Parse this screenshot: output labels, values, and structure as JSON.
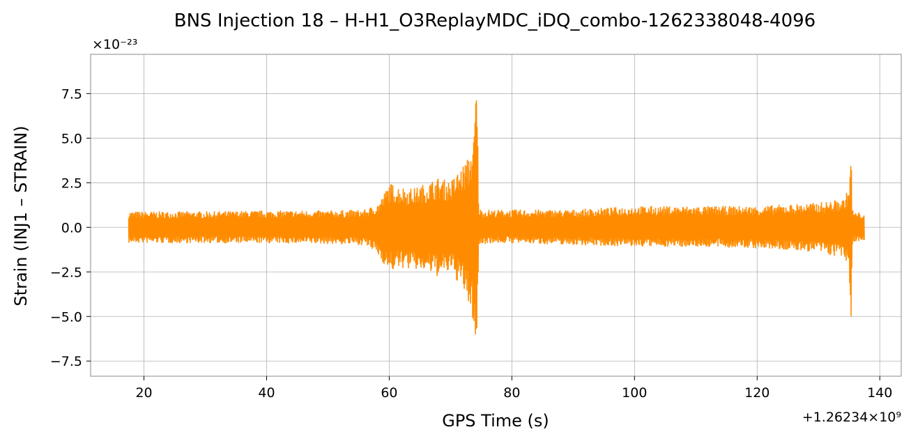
{
  "chart_data": {
    "type": "line",
    "title": "BNS Injection 18 – H-H1_O3ReplayMDC_iDQ_combo-1262338048-4096",
    "xlabel": "GPS Time (s)",
    "ylabel": "Strain (INJ1 – STRAIN)",
    "x_offset_label": "+1.26234×10⁹",
    "y_scale_label": "×10⁻²³",
    "xlim": [
      11.3,
      143.5
    ],
    "ylim": [
      -8.35,
      9.7
    ],
    "x_ticks": [
      20,
      40,
      60,
      80,
      100,
      120,
      140
    ],
    "x_tick_labels": [
      "20",
      "40",
      "60",
      "80",
      "100",
      "120",
      "140"
    ],
    "y_ticks": [
      -7.5,
      -5.0,
      -2.5,
      0.0,
      2.5,
      5.0,
      7.5
    ],
    "y_tick_labels": [
      "−7.5",
      "−5.0",
      "−2.5",
      "0.0",
      "2.5",
      "5.0",
      "7.5"
    ],
    "grid": true,
    "series": [
      {
        "color": "#ff8c00",
        "envelope_x": [
          17.5,
          20,
          30,
          40,
          50,
          56,
          58,
          59,
          60,
          62,
          64,
          66,
          68,
          70,
          72,
          73,
          73.8,
          74.2,
          74.4,
          74.6,
          74.8,
          75,
          76,
          80,
          90,
          100,
          110,
          120,
          125,
          130,
          132,
          134,
          135,
          135.3,
          135.5,
          135.7,
          136,
          137.5
        ],
        "envelope_upper": [
          0.9,
          0.9,
          0.9,
          0.95,
          0.95,
          1.0,
          1.3,
          1.8,
          2.5,
          2.3,
          2.2,
          2.5,
          2.8,
          2.6,
          3.5,
          4.0,
          5.0,
          8.8,
          6.0,
          1.2,
          1.1,
          1.0,
          1.0,
          1.0,
          1.0,
          1.2,
          1.2,
          1.2,
          1.3,
          1.4,
          1.5,
          1.6,
          2.2,
          4.7,
          1.2,
          0.9,
          0.85,
          0.85
        ],
        "envelope_lower": [
          -0.9,
          -0.9,
          -0.9,
          -0.9,
          -0.95,
          -1.0,
          -1.5,
          -2.0,
          -2.5,
          -2.3,
          -2.4,
          -2.5,
          -2.8,
          -2.5,
          -3.5,
          -4.5,
          -5.5,
          -7.5,
          -5.0,
          -1.0,
          -1.0,
          -1.0,
          -0.9,
          -0.9,
          -1.0,
          -1.1,
          -1.1,
          -1.2,
          -1.3,
          -1.4,
          -1.6,
          -1.7,
          -2.3,
          -5.8,
          -1.1,
          -0.85,
          -0.8,
          -0.8
        ]
      }
    ]
  }
}
